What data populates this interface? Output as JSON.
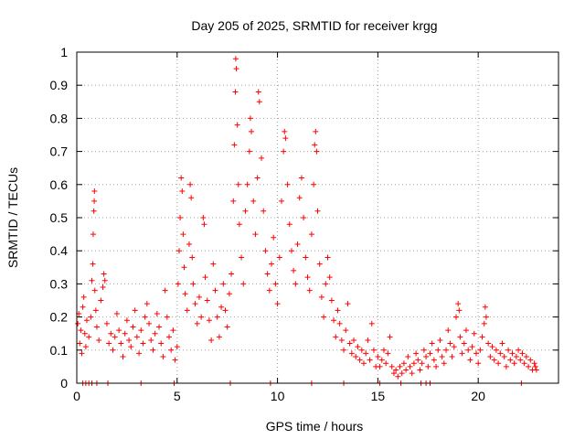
{
  "chart_data": {
    "type": "scatter",
    "title": "Day 205 of 2025, SRMTID for receiver krgg",
    "xlabel": "GPS time / hours",
    "ylabel": "SRMTID / TECUs",
    "xlim": [
      0,
      24
    ],
    "ylim": [
      0,
      1
    ],
    "xticks": [
      0,
      5,
      10,
      15,
      20
    ],
    "xtick_labels": [
      "0",
      "5",
      "10",
      "15",
      "20"
    ],
    "yticks": [
      0,
      0.1,
      0.2,
      0.3,
      0.4,
      0.5,
      0.6,
      0.7,
      0.8,
      0.9,
      1
    ],
    "ytick_labels": [
      "0",
      "0.1",
      "0.2",
      "0.3",
      "0.4",
      "0.5",
      "0.6",
      "0.7",
      "0.8",
      "0.9",
      "1"
    ],
    "grid": true,
    "marker": "+",
    "color": "#ff0000",
    "series": [
      {
        "name": "SRMTID",
        "points": [
          [
            0.05,
            0.18
          ],
          [
            0.1,
            0.21
          ],
          [
            0.15,
            0.12
          ],
          [
            0.2,
            0.16
          ],
          [
            0.25,
            0.09
          ],
          [
            0.3,
            0.23
          ],
          [
            0.35,
            0.26
          ],
          [
            0.4,
            0.15
          ],
          [
            0.45,
            0.11
          ],
          [
            0.5,
            0.19
          ],
          [
            0.6,
            0.14
          ],
          [
            0.7,
            0.2
          ],
          [
            0.75,
            0.31
          ],
          [
            0.8,
            0.36
          ],
          [
            0.82,
            0.45
          ],
          [
            0.85,
            0.52
          ],
          [
            0.87,
            0.55
          ],
          [
            0.88,
            0.58
          ],
          [
            0.9,
            0.28
          ],
          [
            0.95,
            0.22
          ],
          [
            1.0,
            0.17
          ],
          [
            1.1,
            0.13
          ],
          [
            1.2,
            0.25
          ],
          [
            1.3,
            0.29
          ],
          [
            1.35,
            0.33
          ],
          [
            1.4,
            0.31
          ],
          [
            1.5,
            0.18
          ],
          [
            1.6,
            0.12
          ],
          [
            1.7,
            0.15
          ],
          [
            1.8,
            0.1
          ],
          [
            1.9,
            0.14
          ],
          [
            2.0,
            0.21
          ],
          [
            2.1,
            0.16
          ],
          [
            2.2,
            0.12
          ],
          [
            2.3,
            0.08
          ],
          [
            2.4,
            0.15
          ],
          [
            2.5,
            0.19
          ],
          [
            2.6,
            0.13
          ],
          [
            2.7,
            0.11
          ],
          [
            2.8,
            0.17
          ],
          [
            2.9,
            0.22
          ],
          [
            3.0,
            0.14
          ],
          [
            3.1,
            0.09
          ],
          [
            3.2,
            0.16
          ],
          [
            3.3,
            0.12
          ],
          [
            3.4,
            0.2
          ],
          [
            3.5,
            0.24
          ],
          [
            3.6,
            0.18
          ],
          [
            3.7,
            0.13
          ],
          [
            3.8,
            0.1
          ],
          [
            3.9,
            0.15
          ],
          [
            4.0,
            0.21
          ],
          [
            4.1,
            0.17
          ],
          [
            4.2,
            0.12
          ],
          [
            4.3,
            0.08
          ],
          [
            4.4,
            0.28
          ],
          [
            4.5,
            0.2
          ],
          [
            4.6,
            0.14
          ],
          [
            4.7,
            0.1
          ],
          [
            4.8,
            0.16
          ],
          [
            4.9,
            0.07
          ],
          [
            5.0,
            0.11
          ],
          [
            5.05,
            0.3
          ],
          [
            5.1,
            0.4
          ],
          [
            5.15,
            0.5
          ],
          [
            5.2,
            0.62
          ],
          [
            5.25,
            0.58
          ],
          [
            5.3,
            0.45
          ],
          [
            5.35,
            0.35
          ],
          [
            5.4,
            0.27
          ],
          [
            5.5,
            0.22
          ],
          [
            5.6,
            0.42
          ],
          [
            5.65,
            0.6
          ],
          [
            5.7,
            0.56
          ],
          [
            5.75,
            0.38
          ],
          [
            5.8,
            0.3
          ],
          [
            5.9,
            0.24
          ],
          [
            6.0,
            0.18
          ],
          [
            6.1,
            0.26
          ],
          [
            6.2,
            0.2
          ],
          [
            6.3,
            0.5
          ],
          [
            6.35,
            0.48
          ],
          [
            6.4,
            0.32
          ],
          [
            6.5,
            0.25
          ],
          [
            6.6,
            0.19
          ],
          [
            6.7,
            0.13
          ],
          [
            6.8,
            0.36
          ],
          [
            6.9,
            0.28
          ],
          [
            7.0,
            0.2
          ],
          [
            7.1,
            0.14
          ],
          [
            7.2,
            0.23
          ],
          [
            7.3,
            0.3
          ],
          [
            7.4,
            0.22
          ],
          [
            7.5,
            0.17
          ],
          [
            7.6,
            0.27
          ],
          [
            7.7,
            0.33
          ],
          [
            7.8,
            0.55
          ],
          [
            7.85,
            0.72
          ],
          [
            7.9,
            0.88
          ],
          [
            7.92,
            0.98
          ],
          [
            7.95,
            0.95
          ],
          [
            8.0,
            0.78
          ],
          [
            8.05,
            0.6
          ],
          [
            8.1,
            0.48
          ],
          [
            8.2,
            0.38
          ],
          [
            8.3,
            0.3
          ],
          [
            8.4,
            0.52
          ],
          [
            8.5,
            0.6
          ],
          [
            8.6,
            0.7
          ],
          [
            8.65,
            0.8
          ],
          [
            8.7,
            0.76
          ],
          [
            8.8,
            0.55
          ],
          [
            8.9,
            0.45
          ],
          [
            9.0,
            0.62
          ],
          [
            9.05,
            0.88
          ],
          [
            9.1,
            0.85
          ],
          [
            9.2,
            0.68
          ],
          [
            9.3,
            0.52
          ],
          [
            9.4,
            0.4
          ],
          [
            9.5,
            0.33
          ],
          [
            9.6,
            0.28
          ],
          [
            9.7,
            0.36
          ],
          [
            9.8,
            0.44
          ],
          [
            9.9,
            0.3
          ],
          [
            10.0,
            0.24
          ],
          [
            10.1,
            0.38
          ],
          [
            10.2,
            0.55
          ],
          [
            10.3,
            0.7
          ],
          [
            10.35,
            0.76
          ],
          [
            10.4,
            0.74
          ],
          [
            10.5,
            0.6
          ],
          [
            10.6,
            0.48
          ],
          [
            10.7,
            0.4
          ],
          [
            10.8,
            0.34
          ],
          [
            10.9,
            0.3
          ],
          [
            11.0,
            0.42
          ],
          [
            11.1,
            0.56
          ],
          [
            11.2,
            0.62
          ],
          [
            11.3,
            0.5
          ],
          [
            11.4,
            0.38
          ],
          [
            11.5,
            0.32
          ],
          [
            11.6,
            0.28
          ],
          [
            11.7,
            0.45
          ],
          [
            11.8,
            0.6
          ],
          [
            11.85,
            0.72
          ],
          [
            11.9,
            0.76
          ],
          [
            11.95,
            0.7
          ],
          [
            12.0,
            0.52
          ],
          [
            12.1,
            0.36
          ],
          [
            12.2,
            0.26
          ],
          [
            12.3,
            0.2
          ],
          [
            12.4,
            0.3
          ],
          [
            12.5,
            0.38
          ],
          [
            12.6,
            0.32
          ],
          [
            12.7,
            0.25
          ],
          [
            12.8,
            0.19
          ],
          [
            12.9,
            0.14
          ],
          [
            13.0,
            0.22
          ],
          [
            13.1,
            0.18
          ],
          [
            13.2,
            0.13
          ],
          [
            13.3,
            0.1
          ],
          [
            13.4,
            0.16
          ],
          [
            13.5,
            0.24
          ],
          [
            13.6,
            0.12
          ],
          [
            13.7,
            0.09
          ],
          [
            13.8,
            0.13
          ],
          [
            13.9,
            0.08
          ],
          [
            14.0,
            0.11
          ],
          [
            14.1,
            0.07
          ],
          [
            14.2,
            0.1
          ],
          [
            14.3,
            0.06
          ],
          [
            14.4,
            0.09
          ],
          [
            14.5,
            0.13
          ],
          [
            14.6,
            0.07
          ],
          [
            14.7,
            0.18
          ],
          [
            14.8,
            0.1
          ],
          [
            14.9,
            0.05
          ],
          [
            15.0,
            0.08
          ],
          [
            15.1,
            0.05
          ],
          [
            15.2,
            0.07
          ],
          [
            15.3,
            0.1
          ],
          [
            15.4,
            0.06
          ],
          [
            15.5,
            0.09
          ],
          [
            15.6,
            0.14
          ],
          [
            15.7,
            0.05
          ],
          [
            15.8,
            0.03
          ],
          [
            15.9,
            0.04
          ],
          [
            16.0,
            0.02
          ],
          [
            16.1,
            0.05
          ],
          [
            16.2,
            0.03
          ],
          [
            16.3,
            0.06
          ],
          [
            16.4,
            0.04
          ],
          [
            16.5,
            0.08
          ],
          [
            16.6,
            0.05
          ],
          [
            16.7,
            0.03
          ],
          [
            16.8,
            0.06
          ],
          [
            16.9,
            0.09
          ],
          [
            17.0,
            0.07
          ],
          [
            17.1,
            0.04
          ],
          [
            17.2,
            0.06
          ],
          [
            17.3,
            0.1
          ],
          [
            17.4,
            0.08
          ],
          [
            17.5,
            0.05
          ],
          [
            17.6,
            0.09
          ],
          [
            17.7,
            0.12
          ],
          [
            17.8,
            0.07
          ],
          [
            17.9,
            0.05
          ],
          [
            18.0,
            0.1
          ],
          [
            18.1,
            0.13
          ],
          [
            18.2,
            0.08
          ],
          [
            18.3,
            0.06
          ],
          [
            18.4,
            0.1
          ],
          [
            18.5,
            0.16
          ],
          [
            18.6,
            0.12
          ],
          [
            18.7,
            0.08
          ],
          [
            18.8,
            0.11
          ],
          [
            18.9,
            0.2
          ],
          [
            19.0,
            0.24
          ],
          [
            19.05,
            0.22
          ],
          [
            19.1,
            0.14
          ],
          [
            19.2,
            0.09
          ],
          [
            19.3,
            0.12
          ],
          [
            19.4,
            0.16
          ],
          [
            19.5,
            0.1
          ],
          [
            19.6,
            0.07
          ],
          [
            19.7,
            0.11
          ],
          [
            19.8,
            0.15
          ],
          [
            19.9,
            0.09
          ],
          [
            20.0,
            0.06
          ],
          [
            20.1,
            0.1
          ],
          [
            20.2,
            0.14
          ],
          [
            20.3,
            0.18
          ],
          [
            20.35,
            0.23
          ],
          [
            20.4,
            0.2
          ],
          [
            20.5,
            0.12
          ],
          [
            20.6,
            0.08
          ],
          [
            20.7,
            0.11
          ],
          [
            20.8,
            0.07
          ],
          [
            20.9,
            0.1
          ],
          [
            21.0,
            0.06
          ],
          [
            21.1,
            0.09
          ],
          [
            21.2,
            0.12
          ],
          [
            21.3,
            0.08
          ],
          [
            21.4,
            0.05
          ],
          [
            21.5,
            0.1
          ],
          [
            21.6,
            0.07
          ],
          [
            21.7,
            0.09
          ],
          [
            21.8,
            0.06
          ],
          [
            21.9,
            0.08
          ],
          [
            22.0,
            0.1
          ],
          [
            22.1,
            0.07
          ],
          [
            22.2,
            0.09
          ],
          [
            22.3,
            0.06
          ],
          [
            22.4,
            0.08
          ],
          [
            22.5,
            0.05
          ],
          [
            22.6,
            0.07
          ],
          [
            22.7,
            0.04
          ],
          [
            22.8,
            0.06
          ],
          [
            22.85,
            0.05
          ],
          [
            22.9,
            0.04
          ],
          [
            0.3,
            0.0
          ],
          [
            0.45,
            0.0
          ],
          [
            0.6,
            0.0
          ],
          [
            0.75,
            0.0
          ],
          [
            1.0,
            0.0
          ],
          [
            1.55,
            0.0
          ],
          [
            3.2,
            0.0
          ],
          [
            4.85,
            0.0
          ],
          [
            7.65,
            0.0
          ],
          [
            9.65,
            0.0
          ],
          [
            11.7,
            0.0
          ],
          [
            13.3,
            0.0
          ],
          [
            15.1,
            0.0
          ],
          [
            16.15,
            0.0
          ],
          [
            17.15,
            0.0
          ],
          [
            17.4,
            0.0
          ],
          [
            17.6,
            0.0
          ],
          [
            22.15,
            0.0
          ]
        ]
      }
    ]
  }
}
